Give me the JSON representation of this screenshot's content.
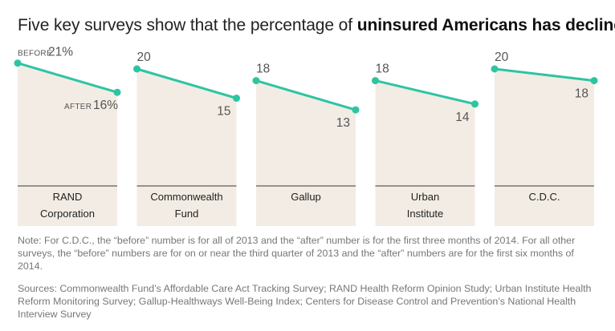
{
  "title": {
    "prefix": "Five key surveys show that the percentage of ",
    "bold": "uninsured Americans has declined",
    "suffix": "."
  },
  "labels": {
    "before": "BEFORE",
    "after": "AFTER"
  },
  "colors": {
    "line": "#2ec4a2",
    "area": "#f2ece4"
  },
  "chart_data": {
    "type": "line",
    "title": "Five key surveys show that the percentage of uninsured Americans has declined.",
    "unit": "%",
    "ylim": [
      0,
      22
    ],
    "x": [
      "Before",
      "After"
    ],
    "series": [
      {
        "name": "RAND Corporation",
        "label_lines": [
          "RAND",
          "Corporation"
        ],
        "values": [
          21,
          16
        ]
      },
      {
        "name": "Commonwealth Fund",
        "label_lines": [
          "Commonwealth",
          "Fund"
        ],
        "values": [
          20,
          15
        ]
      },
      {
        "name": "Gallup",
        "label_lines": [
          "Gallup"
        ],
        "values": [
          18,
          13
        ]
      },
      {
        "name": "Urban Institute",
        "label_lines": [
          "Urban",
          "Institute"
        ],
        "values": [
          18,
          14
        ]
      },
      {
        "name": "C.D.C.",
        "label_lines": [
          "C.D.C."
        ],
        "values": [
          20,
          18
        ]
      }
    ]
  },
  "note": "Note: For C.D.C., the “before” number is for all of 2013 and the “after” number is for the first three months of 2014. For all other surveys, the “before” numbers are for on or near the third quarter of 2013 and the “after” numbers are for the first six months of 2014.",
  "sources": "Sources: Commonwealth Fund’s Affordable Care Act Tracking Survey; RAND Health Reform Opinion Study; Urban Institute Health Reform Monitoring Survey; Gallup-Healthways Well-Being Index; Centers for Disease Control and Prevention’s National Health Interview Survey"
}
